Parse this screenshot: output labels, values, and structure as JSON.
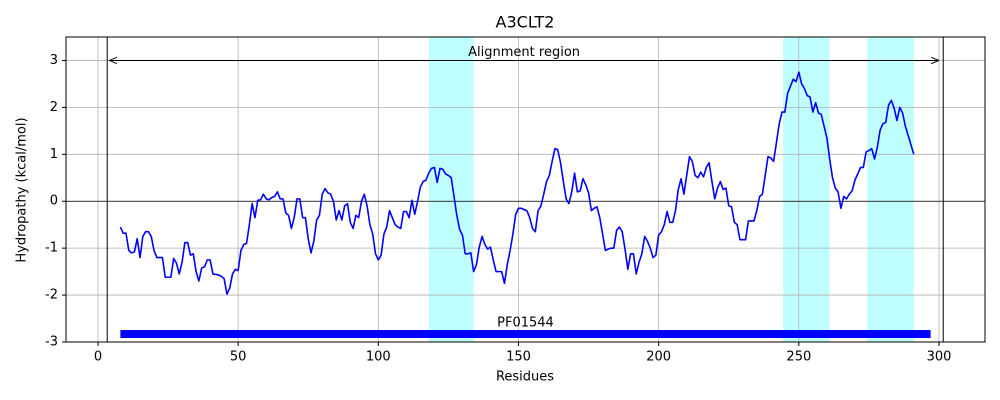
{
  "chart_data": {
    "type": "line",
    "title": "A3CLT2",
    "x_label": "Residues",
    "y_label": "Hydropathy (kcal/mol)",
    "color": "#0000ff",
    "xlim": [
      -11.4,
      316.4
    ],
    "ylim": [
      -3,
      3.5
    ],
    "xticks": [
      0,
      50,
      100,
      150,
      200,
      250,
      300
    ],
    "yticks": [
      -3,
      -2,
      -1,
      0,
      1,
      2,
      3
    ],
    "grid": true,
    "hline": 0,
    "regions": {
      "color": "#c0ffff",
      "spans": [
        [
          118,
          134
        ],
        [
          244.4,
          261
        ],
        [
          274.4,
          291
        ]
      ]
    },
    "boundaries": [
      3.3,
      301.5
    ],
    "alignment": {
      "label": "Alignment region",
      "start": 4,
      "end": 300,
      "y": 3
    },
    "domains": [
      {
        "label": "PF01544",
        "start": 8,
        "end": 297,
        "y": -2.83,
        "color": "#0000ff"
      }
    ],
    "x": [
      8,
      9,
      10,
      11,
      12,
      13,
      14,
      15,
      16,
      17,
      18,
      19,
      20,
      21,
      23,
      24,
      26,
      27,
      28,
      29,
      30,
      31,
      32,
      33,
      34,
      35,
      36,
      37,
      38,
      39,
      40,
      41,
      43,
      44,
      45,
      46,
      47,
      48,
      49,
      50,
      51,
      52,
      53,
      54,
      55,
      56,
      57,
      58,
      59,
      60,
      61,
      62,
      63,
      64,
      65,
      66,
      67,
      68,
      69,
      70,
      71,
      72,
      73,
      74,
      75,
      76,
      77,
      78,
      79,
      80,
      81,
      82,
      83,
      84,
      85,
      86,
      87,
      88,
      89,
      90,
      91,
      92,
      93,
      94,
      95,
      96,
      97,
      98,
      99,
      100,
      101,
      102,
      103,
      104,
      105,
      106,
      107,
      108,
      109,
      110,
      111,
      112,
      113,
      114,
      115,
      116,
      117,
      118,
      119,
      120,
      121,
      122,
      123,
      124,
      125,
      126,
      127,
      128,
      129,
      130,
      131,
      132,
      133,
      134,
      135,
      136,
      137,
      138,
      139,
      140,
      141,
      142,
      143,
      144,
      145,
      146,
      147,
      148,
      149,
      150,
      151,
      152,
      153,
      154,
      155,
      156,
      157,
      158,
      159,
      160,
      161,
      162,
      163,
      164,
      165,
      166,
      167,
      168,
      169,
      170,
      171,
      172,
      173,
      174,
      175,
      176,
      177,
      178,
      179,
      180,
      181,
      182,
      183,
      184,
      185,
      186,
      187,
      188,
      189,
      190,
      191,
      192,
      193,
      194,
      195,
      196,
      197,
      198,
      199,
      200,
      201,
      202,
      203,
      204,
      205,
      206,
      207,
      208,
      209,
      210,
      211,
      212,
      213,
      214,
      215,
      216,
      217,
      218,
      219,
      220,
      221,
      222,
      223,
      224,
      225,
      226,
      227,
      228,
      229,
      230,
      231,
      232,
      233,
      234,
      235,
      236,
      237,
      238,
      239,
      240,
      241,
      242,
      243,
      244,
      245,
      246,
      247,
      248,
      249,
      250,
      251,
      252,
      253,
      254,
      255,
      256,
      257,
      258,
      259,
      260,
      261,
      262,
      263,
      264,
      265,
      266,
      267,
      268,
      269,
      270,
      271,
      272,
      273,
      274,
      275,
      276,
      277,
      278,
      279,
      280,
      281,
      282,
      283,
      284,
      285,
      286,
      287,
      288,
      291
    ],
    "values": [
      -0.55,
      -0.68,
      -0.68,
      -1.05,
      -1.1,
      -1.08,
      -0.8,
      -1.2,
      -0.75,
      -0.65,
      -0.65,
      -0.75,
      -1.05,
      -1.2,
      -1.2,
      -1.62,
      -1.62,
      -1.22,
      -1.32,
      -1.55,
      -1.3,
      -0.88,
      -0.88,
      -1.15,
      -1.12,
      -1.5,
      -1.7,
      -1.42,
      -1.4,
      -1.25,
      -1.25,
      -1.55,
      -1.57,
      -1.6,
      -1.65,
      -1.98,
      -1.85,
      -1.55,
      -1.45,
      -1.48,
      -1.05,
      -0.92,
      -0.9,
      -0.5,
      -0.05,
      -0.35,
      0.02,
      0.03,
      0.15,
      0.05,
      0.03,
      0.08,
      0.1,
      0.2,
      0.05,
      0.05,
      -0.25,
      -0.3,
      -0.58,
      -0.35,
      0.05,
      0.05,
      -0.35,
      -0.35,
      -0.8,
      -1.1,
      -0.85,
      -0.4,
      -0.3,
      0.15,
      0.27,
      0.18,
      0.15,
      0.0,
      -0.4,
      -0.2,
      -0.4,
      -0.1,
      -0.05,
      -0.45,
      -0.58,
      -0.3,
      -0.35,
      0.0,
      0.15,
      -0.1,
      -0.5,
      -0.7,
      -1.12,
      -1.25,
      -1.15,
      -0.7,
      -0.55,
      -0.2,
      -0.35,
      -0.5,
      -0.55,
      -0.58,
      -0.22,
      -0.22,
      -0.35,
      0.02,
      -0.28,
      0.0,
      0.3,
      0.42,
      0.45,
      0.6,
      0.7,
      0.72,
      0.4,
      0.7,
      0.68,
      0.58,
      0.55,
      0.5,
      0.1,
      -0.3,
      -0.6,
      -0.72,
      -1.12,
      -1.12,
      -1.1,
      -1.5,
      -1.35,
      -0.98,
      -0.75,
      -0.92,
      -1.02,
      -0.98,
      -1.25,
      -1.5,
      -1.5,
      -1.5,
      -1.75,
      -1.35,
      -1.05,
      -0.7,
      -0.28,
      -0.15,
      -0.15,
      -0.18,
      -0.2,
      -0.35,
      -0.58,
      -0.65,
      -0.2,
      -0.1,
      0.15,
      0.42,
      0.55,
      0.85,
      1.12,
      1.1,
      0.82,
      0.42,
      0.05,
      -0.05,
      0.2,
      0.6,
      0.2,
      0.22,
      0.48,
      0.35,
      0.18,
      -0.2,
      -0.15,
      -0.12,
      -0.35,
      -0.7,
      -1.05,
      -1.02,
      -1.0,
      -1.0,
      -0.62,
      -0.55,
      -0.65,
      -1.02,
      -1.45,
      -1.12,
      -1.12,
      -1.55,
      -1.3,
      -1.12,
      -0.75,
      -0.85,
      -1.0,
      -1.2,
      -1.15,
      -0.72,
      -0.65,
      -0.5,
      -0.22,
      -0.45,
      -0.45,
      -0.2,
      0.25,
      0.48,
      0.15,
      0.55,
      0.95,
      0.85,
      0.55,
      0.5,
      0.62,
      0.52,
      0.72,
      0.82,
      0.42,
      0.05,
      0.28,
      0.42,
      0.25,
      0.28,
      -0.1,
      -0.12,
      -0.45,
      -0.5,
      -0.82,
      -0.82,
      -0.82,
      -0.42,
      -0.42,
      -0.42,
      -0.2,
      0.1,
      0.15,
      0.55,
      0.95,
      0.92,
      0.85,
      1.25,
      1.65,
      1.9,
      1.9,
      2.3,
      2.45,
      2.6,
      2.55,
      2.75,
      2.5,
      2.4,
      2.25,
      2.22,
      1.9,
      2.1,
      1.88,
      1.85,
      1.6,
      1.35,
      0.9,
      0.5,
      0.28,
      0.2,
      -0.15,
      0.1,
      0.05,
      0.15,
      0.22,
      0.45,
      0.58,
      0.72,
      0.72,
      1.05,
      1.08,
      1.12,
      0.9,
      1.15,
      1.52,
      1.65,
      1.68,
      2.05,
      2.15,
      1.98,
      1.72,
      2.0,
      1.88,
      1.6,
      1.0
    ]
  }
}
